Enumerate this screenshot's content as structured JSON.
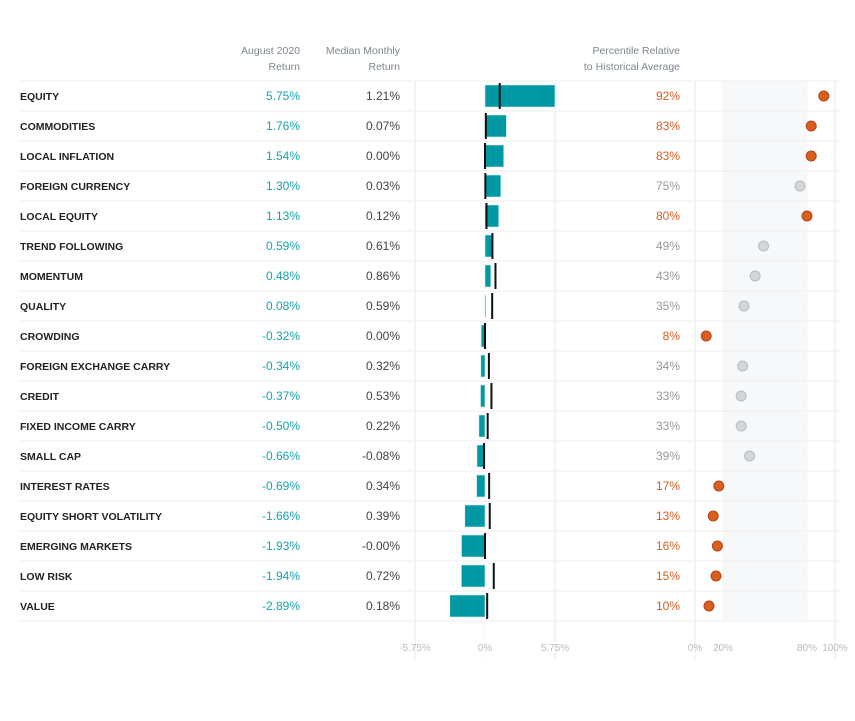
{
  "chart_data": {
    "type": "table",
    "headers": {
      "name": "",
      "return": [
        "August 2020",
        "Return"
      ],
      "median": [
        "Median Monthly",
        "Return"
      ],
      "percentile": [
        "Percentile Relative",
        "to Historical Average"
      ]
    },
    "bar_axis": {
      "range": [
        -5.75,
        5.75
      ],
      "ticks": [
        "-5.75%",
        "0%",
        "5.75%"
      ]
    },
    "percentile_axis": {
      "range": [
        0,
        100
      ],
      "ticks": [
        "0%",
        "20%",
        "80%",
        "100%"
      ],
      "band": [
        20,
        80
      ]
    },
    "colors": {
      "bar": "#0099a3",
      "return_text": "#16a3ac",
      "median_marker": "#111111",
      "highlight": "#d95f1e",
      "neutral": "#999999",
      "neutral_dot": "#d4d6da",
      "band": "#f7f8fa"
    },
    "rows": [
      {
        "name": "EQUITY",
        "return": 5.75,
        "return_label": "5.75%",
        "median": 1.21,
        "median_label": "1.21%",
        "percentile": 92,
        "percentile_label": "92%",
        "highlight": true
      },
      {
        "name": "COMMODITIES",
        "return": 1.76,
        "return_label": "1.76%",
        "median": 0.07,
        "median_label": "0.07%",
        "percentile": 83,
        "percentile_label": "83%",
        "highlight": true
      },
      {
        "name": "LOCAL INFLATION",
        "return": 1.54,
        "return_label": "1.54%",
        "median": 0.0,
        "median_label": "0.00%",
        "percentile": 83,
        "percentile_label": "83%",
        "highlight": true
      },
      {
        "name": "FOREIGN CURRENCY",
        "return": 1.3,
        "return_label": "1.30%",
        "median": 0.03,
        "median_label": "0.03%",
        "percentile": 75,
        "percentile_label": "75%",
        "highlight": false
      },
      {
        "name": "LOCAL EQUITY",
        "return": 1.13,
        "return_label": "1.13%",
        "median": 0.12,
        "median_label": "0.12%",
        "percentile": 80,
        "percentile_label": "80%",
        "highlight": true
      },
      {
        "name": "TREND FOLLOWING",
        "return": 0.59,
        "return_label": "0.59%",
        "median": 0.61,
        "median_label": "0.61%",
        "percentile": 49,
        "percentile_label": "49%",
        "highlight": false
      },
      {
        "name": "MOMENTUM",
        "return": 0.48,
        "return_label": "0.48%",
        "median": 0.86,
        "median_label": "0.86%",
        "percentile": 43,
        "percentile_label": "43%",
        "highlight": false
      },
      {
        "name": "QUALITY",
        "return": 0.08,
        "return_label": "0.08%",
        "median": 0.59,
        "median_label": "0.59%",
        "percentile": 35,
        "percentile_label": "35%",
        "highlight": false
      },
      {
        "name": "CROWDING",
        "return": -0.32,
        "return_label": "-0.32%",
        "median": 0.0,
        "median_label": "0.00%",
        "percentile": 8,
        "percentile_label": "8%",
        "highlight": true
      },
      {
        "name": "FOREIGN EXCHANGE CARRY",
        "return": -0.34,
        "return_label": "-0.34%",
        "median": 0.32,
        "median_label": "0.32%",
        "percentile": 34,
        "percentile_label": "34%",
        "highlight": false
      },
      {
        "name": "CREDIT",
        "return": -0.37,
        "return_label": "-0.37%",
        "median": 0.53,
        "median_label": "0.53%",
        "percentile": 33,
        "percentile_label": "33%",
        "highlight": false
      },
      {
        "name": "FIXED INCOME CARRY",
        "return": -0.5,
        "return_label": "-0.50%",
        "median": 0.22,
        "median_label": "0.22%",
        "percentile": 33,
        "percentile_label": "33%",
        "highlight": false
      },
      {
        "name": "SMALL CAP",
        "return": -0.66,
        "return_label": "-0.66%",
        "median": -0.08,
        "median_label": "-0.08%",
        "percentile": 39,
        "percentile_label": "39%",
        "highlight": false
      },
      {
        "name": "INTEREST RATES",
        "return": -0.69,
        "return_label": "-0.69%",
        "median": 0.34,
        "median_label": "0.34%",
        "percentile": 17,
        "percentile_label": "17%",
        "highlight": true
      },
      {
        "name": "EQUITY SHORT VOLATILITY",
        "return": -1.66,
        "return_label": "-1.66%",
        "median": 0.39,
        "median_label": "0.39%",
        "percentile": 13,
        "percentile_label": "13%",
        "highlight": true
      },
      {
        "name": "EMERGING MARKETS",
        "return": -1.93,
        "return_label": "-1.93%",
        "median": -0.0,
        "median_label": "-0.00%",
        "percentile": 16,
        "percentile_label": "16%",
        "highlight": true
      },
      {
        "name": "LOW RISK",
        "return": -1.94,
        "return_label": "-1.94%",
        "median": 0.72,
        "median_label": "0.72%",
        "percentile": 15,
        "percentile_label": "15%",
        "highlight": true
      },
      {
        "name": "VALUE",
        "return": -2.89,
        "return_label": "-2.89%",
        "median": 0.18,
        "median_label": "0.18%",
        "percentile": 10,
        "percentile_label": "10%",
        "highlight": true
      }
    ]
  }
}
